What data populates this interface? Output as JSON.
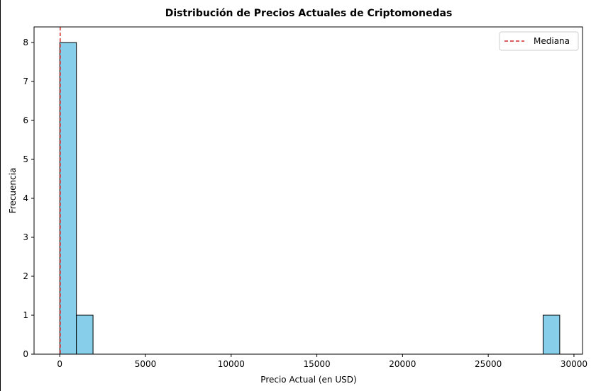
{
  "chart_data": {
    "type": "bar",
    "subtype": "histogram",
    "title": "Distribución de Precios Actuales de Criptomonedas",
    "xlabel": "Precio Actual (en USD)",
    "ylabel": "Frecuencia",
    "xlim": [
      -1500,
      30500
    ],
    "ylim": [
      0,
      8.4
    ],
    "xticks": [
      0,
      5000,
      10000,
      15000,
      20000,
      25000,
      30000
    ],
    "yticks": [
      0,
      1,
      2,
      3,
      4,
      5,
      6,
      7,
      8
    ],
    "bins": [
      {
        "x0": 0,
        "x1": 970,
        "count": 8
      },
      {
        "x0": 970,
        "x1": 1940,
        "count": 1
      },
      {
        "x0": 28200,
        "x1": 29170,
        "count": 1
      }
    ],
    "median_line": {
      "label": "Mediana",
      "x": 25,
      "color": "#d62728",
      "style": "dashed"
    },
    "bar_color": "#87ceeb",
    "edge_color": "#000000",
    "grid": false,
    "legend_position": "upper right"
  }
}
